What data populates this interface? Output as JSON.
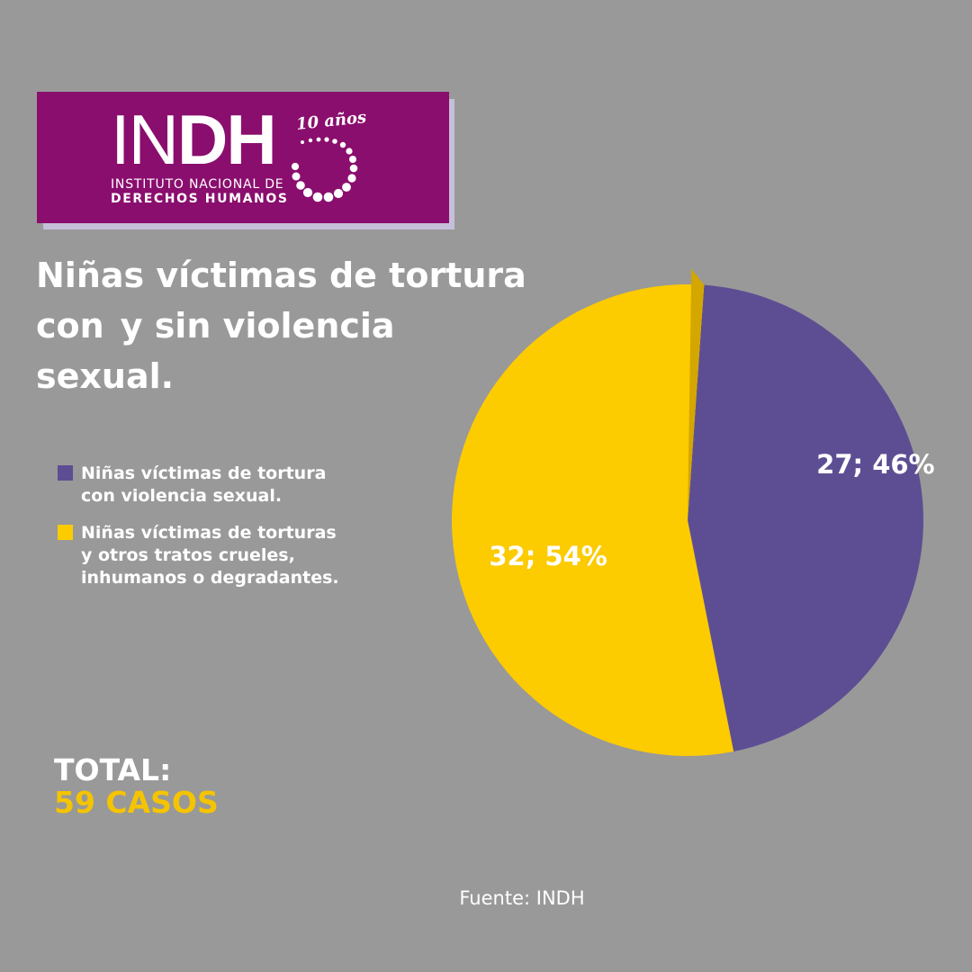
{
  "logo": {
    "main_light": "IN",
    "main_bold": "DH",
    "anniversary": "10 años",
    "line1": "INSTITUTO NACIONAL DE",
    "line2": "DERECHOS HUMANOS"
  },
  "title": {
    "line1": "Niñas víctimas de tortura",
    "con": "con",
    "line2_rest": "y  sin violencia",
    "line3": "sexual."
  },
  "total": {
    "label": "TOTAL:",
    "value": "59 CASOS"
  },
  "source": "Fuente: INDH",
  "colors": {
    "background": "#999999",
    "purple": "#5d4e93",
    "yellow": "#fccb00",
    "separator": "#d4a600",
    "logo_bg": "#8a0e6e"
  },
  "chart_data": {
    "type": "pie",
    "title": "Niñas víctimas de tortura con y sin violencia sexual.",
    "total": 59,
    "series": [
      {
        "name": "Niñas víctimas de tortura con violencia sexual.",
        "value": 27,
        "percent": 46,
        "label": "27; 46%",
        "color": "#5d4e93"
      },
      {
        "name": "Niñas víctimas de torturas y otros tratos crueles, inhumanos o degradantes.",
        "value": 32,
        "percent": 54,
        "label": "32; 54%",
        "color": "#fccb00"
      }
    ],
    "legend": [
      {
        "text": "Niñas víctimas de tortura\ncon violencia sexual.",
        "color": "#5d4e93"
      },
      {
        "text": "Niñas víctimas de torturas\ny otros tratos crueles,\ninhumanos o degradantes.",
        "color": "#fccb00"
      }
    ]
  }
}
